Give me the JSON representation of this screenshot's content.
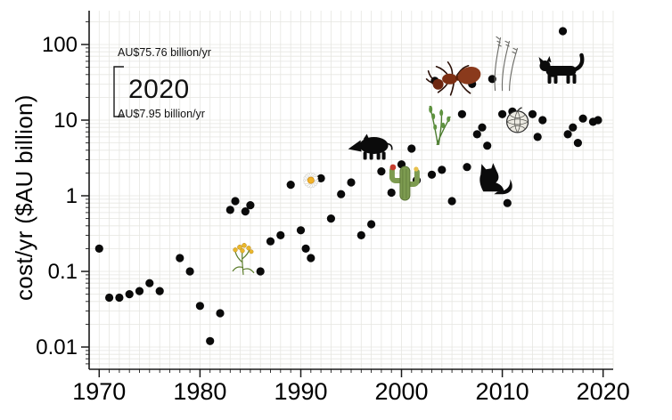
{
  "figure": {
    "ylabel": "cost/yr ($AU billion)"
  },
  "colors": {
    "marker": "#0a0a0a",
    "grid": "#e6e6e1",
    "axis": "#1a1a1a"
  },
  "chart_data": {
    "type": "scatter",
    "title": "",
    "xlabel": "",
    "ylabel": "cost/yr ($AU billion)",
    "x_axis": {
      "scale": "linear",
      "lim": [
        1969,
        2021
      ],
      "ticks": [
        1970,
        1980,
        1990,
        2000,
        2010,
        2020
      ]
    },
    "y_axis": {
      "scale": "log",
      "lim": [
        0.005,
        250
      ],
      "ticks": [
        {
          "value": 0.01,
          "label": "0.01"
        },
        {
          "value": 0.1,
          "label": "0.1"
        },
        {
          "value": 1,
          "label": "1"
        },
        {
          "value": 10,
          "label": "10"
        },
        {
          "value": 100,
          "label": "100"
        }
      ]
    },
    "grid": "minor log grid on, light gray",
    "legend": "none",
    "annotation": {
      "year_label": "2020",
      "upper_label": "AU$75.76 billion/yr",
      "lower_label": "AU$7.95 billion/yr",
      "upper_value": 75.76,
      "lower_value": 7.95
    },
    "points": [
      [
        1970,
        0.2
      ],
      [
        1971,
        0.045
      ],
      [
        1972,
        0.045
      ],
      [
        1973,
        0.05
      ],
      [
        1974,
        0.055
      ],
      [
        1975,
        0.07
      ],
      [
        1976,
        0.055
      ],
      [
        1978,
        0.15
      ],
      [
        1979,
        0.1
      ],
      [
        1980,
        0.035
      ],
      [
        1981,
        0.012
      ],
      [
        1982,
        0.028
      ],
      [
        1983,
        0.65
      ],
      [
        1983.5,
        0.85
      ],
      [
        1984.5,
        0.62
      ],
      [
        1985,
        0.75
      ],
      [
        1986,
        0.1
      ],
      [
        1987,
        0.25
      ],
      [
        1988,
        0.3
      ],
      [
        1989,
        1.4
      ],
      [
        1990,
        0.35
      ],
      [
        1990.5,
        0.2
      ],
      [
        1991,
        0.15
      ],
      [
        1992,
        1.7
      ],
      [
        1993,
        0.5
      ],
      [
        1994,
        1.05
      ],
      [
        1995,
        1.5
      ],
      [
        1996,
        0.3
      ],
      [
        1997,
        0.42
      ],
      [
        1998,
        2.1
      ],
      [
        1999,
        1.1
      ],
      [
        2000,
        2.6
      ],
      [
        2001,
        4.2
      ],
      [
        2001.5,
        1.6
      ],
      [
        2003,
        1.9
      ],
      [
        2003.3,
        33
      ],
      [
        2004,
        2.2
      ],
      [
        2005,
        0.85
      ],
      [
        2006,
        12
      ],
      [
        2006.5,
        2.4
      ],
      [
        2007,
        30
      ],
      [
        2007.5,
        6.5
      ],
      [
        2008,
        8
      ],
      [
        2008.5,
        4.6
      ],
      [
        2009,
        35
      ],
      [
        2010,
        12
      ],
      [
        2010.5,
        0.8
      ],
      [
        2011,
        13
      ],
      [
        2012,
        9
      ],
      [
        2013,
        12
      ],
      [
        2013.5,
        6
      ],
      [
        2014,
        10
      ],
      [
        2015,
        42
      ],
      [
        2016,
        150
      ],
      [
        2016.5,
        6.5
      ],
      [
        2017,
        8
      ],
      [
        2017.5,
        5
      ],
      [
        2018,
        10.5
      ],
      [
        2019,
        9.5
      ],
      [
        2019.5,
        10
      ]
    ],
    "icons": [
      {
        "name": "tansy-flower-icon",
        "year": 1984.3,
        "value": 0.155
      },
      {
        "name": "daisy-flower-icon",
        "year": 1991,
        "value": 1.6
      },
      {
        "name": "boar-icon",
        "year": 1997,
        "value": 4.5
      },
      {
        "name": "cactus-icon",
        "year": 2000.3,
        "value": 1.5
      },
      {
        "name": "leafy-plant-icon",
        "year": 2003.6,
        "value": 9
      },
      {
        "name": "ant-icon",
        "year": 2005.4,
        "value": 34
      },
      {
        "name": "fox-icon",
        "year": 2009,
        "value": 1.8
      },
      {
        "name": "grass-seeds-icon",
        "year": 2010,
        "value": 55
      },
      {
        "name": "melon-icon",
        "year": 2011.5,
        "value": 9.5
      },
      {
        "name": "cat-icon",
        "year": 2016,
        "value": 42
      }
    ]
  }
}
